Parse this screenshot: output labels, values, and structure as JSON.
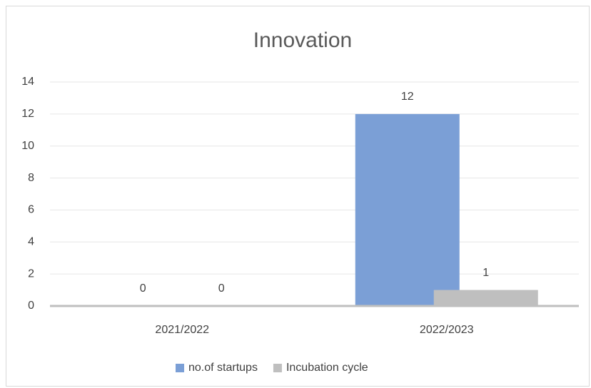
{
  "chart_data": {
    "type": "bar",
    "title": "Innovation",
    "categories": [
      "2021/2022",
      "2022/2023"
    ],
    "series": [
      {
        "name": "no.of startups",
        "color": "#7b9fd6",
        "values": [
          0,
          12
        ]
      },
      {
        "name": "Incubation cycle",
        "color": "#bfbfbf",
        "values": [
          0,
          1
        ]
      }
    ],
    "ylim": [
      0,
      14
    ],
    "yticks": [
      0,
      2,
      4,
      6,
      8,
      10,
      12,
      14
    ],
    "grid": true,
    "legend": "bottom",
    "data_labels": true
  }
}
